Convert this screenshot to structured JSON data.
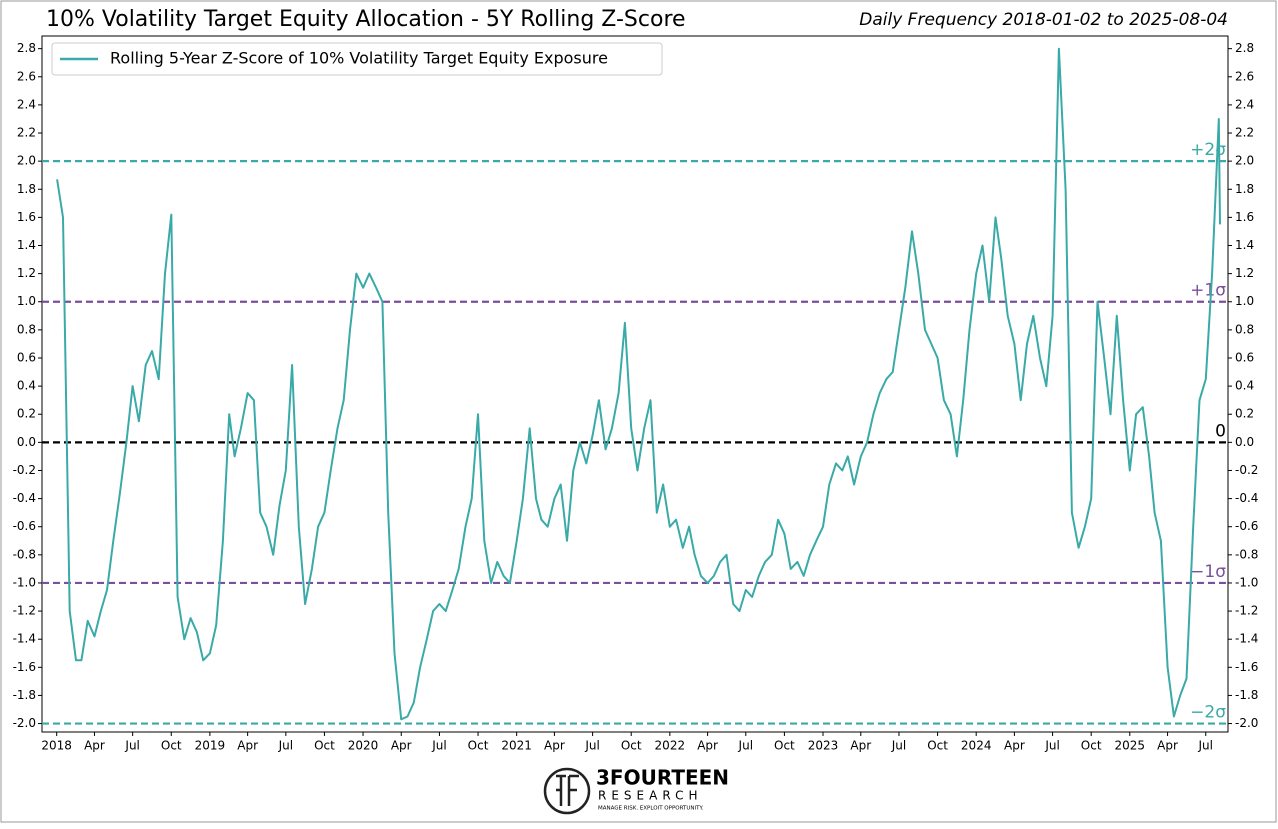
{
  "chart_data": {
    "type": "line",
    "title": "10% Volatility Target Equity Allocation - 5Y Rolling Z-Score",
    "subtitle": "Daily Frequency 2018-01-02 to 2025-08-04",
    "x": [
      "2018-01-02",
      "2018-01-16",
      "2018-02-01",
      "2018-02-16",
      "2018-03-01",
      "2018-03-16",
      "2018-04-01",
      "2018-04-16",
      "2018-05-01",
      "2018-05-16",
      "2018-06-01",
      "2018-06-16",
      "2018-07-01",
      "2018-07-16",
      "2018-08-01",
      "2018-08-16",
      "2018-09-01",
      "2018-09-16",
      "2018-10-01",
      "2018-10-16",
      "2018-11-01",
      "2018-11-16",
      "2018-12-01",
      "2018-12-16",
      "2019-01-01",
      "2019-01-16",
      "2019-02-01",
      "2019-02-16",
      "2019-03-01",
      "2019-03-16",
      "2019-04-01",
      "2019-04-16",
      "2019-05-01",
      "2019-05-16",
      "2019-06-01",
      "2019-06-16",
      "2019-07-01",
      "2019-07-16",
      "2019-08-01",
      "2019-08-16",
      "2019-09-01",
      "2019-09-16",
      "2019-10-01",
      "2019-10-16",
      "2019-11-01",
      "2019-11-16",
      "2019-12-01",
      "2019-12-16",
      "2020-01-01",
      "2020-01-16",
      "2020-02-01",
      "2020-02-16",
      "2020-03-01",
      "2020-03-16",
      "2020-04-01",
      "2020-04-16",
      "2020-05-01",
      "2020-05-16",
      "2020-06-01",
      "2020-06-16",
      "2020-07-01",
      "2020-07-16",
      "2020-08-01",
      "2020-08-16",
      "2020-09-01",
      "2020-09-16",
      "2020-10-01",
      "2020-10-16",
      "2020-11-01",
      "2020-11-16",
      "2020-12-01",
      "2020-12-16",
      "2021-01-01",
      "2021-01-16",
      "2021-02-01",
      "2021-02-16",
      "2021-03-01",
      "2021-03-16",
      "2021-04-01",
      "2021-04-16",
      "2021-05-01",
      "2021-05-16",
      "2021-06-01",
      "2021-06-16",
      "2021-07-01",
      "2021-07-16",
      "2021-08-01",
      "2021-08-16",
      "2021-09-01",
      "2021-09-16",
      "2021-10-01",
      "2021-10-16",
      "2021-11-01",
      "2021-11-16",
      "2021-12-01",
      "2021-12-16",
      "2022-01-01",
      "2022-01-16",
      "2022-02-01",
      "2022-02-16",
      "2022-03-01",
      "2022-03-16",
      "2022-04-01",
      "2022-04-16",
      "2022-05-01",
      "2022-05-16",
      "2022-06-01",
      "2022-06-16",
      "2022-07-01",
      "2022-07-16",
      "2022-08-01",
      "2022-08-16",
      "2022-09-01",
      "2022-09-16",
      "2022-10-01",
      "2022-10-16",
      "2022-11-01",
      "2022-11-16",
      "2022-12-01",
      "2022-12-16",
      "2023-01-01",
      "2023-01-16",
      "2023-02-01",
      "2023-02-16",
      "2023-03-01",
      "2023-03-16",
      "2023-04-01",
      "2023-04-16",
      "2023-05-01",
      "2023-05-16",
      "2023-06-01",
      "2023-06-16",
      "2023-07-01",
      "2023-07-16",
      "2023-08-01",
      "2023-08-16",
      "2023-09-01",
      "2023-09-16",
      "2023-10-01",
      "2023-10-16",
      "2023-11-01",
      "2023-11-16",
      "2023-12-01",
      "2023-12-16",
      "2024-01-01",
      "2024-01-16",
      "2024-02-01",
      "2024-02-16",
      "2024-03-01",
      "2024-03-16",
      "2024-04-01",
      "2024-04-16",
      "2024-05-01",
      "2024-05-16",
      "2024-06-01",
      "2024-06-16",
      "2024-07-01",
      "2024-07-16",
      "2024-08-01",
      "2024-08-16",
      "2024-09-01",
      "2024-09-16",
      "2024-10-01",
      "2024-10-16",
      "2024-11-01",
      "2024-11-16",
      "2024-12-01",
      "2024-12-16",
      "2025-01-01",
      "2025-01-16",
      "2025-02-01",
      "2025-02-16",
      "2025-03-01",
      "2025-03-16",
      "2025-04-01",
      "2025-04-16",
      "2025-05-01",
      "2025-05-16",
      "2025-06-01",
      "2025-06-16",
      "2025-07-01",
      "2025-07-16",
      "2025-08-01",
      "2025-08-04"
    ],
    "series": [
      {
        "name": "Rolling 5-Year Z-Score of 10% Volatility Target Equity Exposure",
        "color": "#3aaaa8",
        "values": [
          1.87,
          1.6,
          -1.2,
          -1.55,
          -1.55,
          -1.27,
          -1.38,
          -1.2,
          -1.05,
          -0.7,
          -0.35,
          0.0,
          0.4,
          0.15,
          0.55,
          0.65,
          0.45,
          1.2,
          1.62,
          -1.1,
          -1.4,
          -1.25,
          -1.35,
          -1.55,
          -1.5,
          -1.3,
          -0.7,
          0.2,
          -0.1,
          0.1,
          0.35,
          0.3,
          -0.5,
          -0.6,
          -0.8,
          -0.45,
          -0.2,
          0.55,
          -0.6,
          -1.15,
          -0.9,
          -0.6,
          -0.5,
          -0.2,
          0.1,
          0.3,
          0.8,
          1.2,
          1.1,
          1.2,
          1.1,
          1.0,
          -0.5,
          -1.5,
          -1.97,
          -1.95,
          -1.85,
          -1.6,
          -1.4,
          -1.2,
          -1.15,
          -1.2,
          -1.05,
          -0.9,
          -0.6,
          -0.4,
          0.2,
          -0.7,
          -1.0,
          -0.85,
          -0.95,
          -1.0,
          -0.7,
          -0.4,
          0.1,
          -0.4,
          -0.55,
          -0.6,
          -0.4,
          -0.3,
          -0.7,
          -0.2,
          0.0,
          -0.15,
          0.05,
          0.3,
          -0.05,
          0.1,
          0.35,
          0.85,
          0.1,
          -0.2,
          0.1,
          0.3,
          -0.5,
          -0.3,
          -0.6,
          -0.55,
          -0.75,
          -0.6,
          -0.8,
          -0.95,
          -1.0,
          -0.95,
          -0.85,
          -0.8,
          -1.15,
          -1.2,
          -1.05,
          -1.1,
          -0.95,
          -0.85,
          -0.8,
          -0.55,
          -0.65,
          -0.9,
          -0.85,
          -0.95,
          -0.8,
          -0.7,
          -0.6,
          -0.3,
          -0.15,
          -0.2,
          -0.1,
          -0.3,
          -0.1,
          0.0,
          0.2,
          0.35,
          0.45,
          0.5,
          0.8,
          1.1,
          1.5,
          1.2,
          0.8,
          0.7,
          0.6,
          0.3,
          0.2,
          -0.1,
          0.3,
          0.8,
          1.2,
          1.4,
          1.0,
          1.6,
          1.3,
          0.9,
          0.7,
          0.3,
          0.7,
          0.9,
          0.6,
          0.4,
          0.9,
          2.8,
          1.8,
          -0.5,
          -0.75,
          -0.6,
          -0.4,
          1.0,
          0.6,
          0.2,
          0.9,
          0.3,
          -0.2,
          0.2,
          0.25,
          -0.1,
          -0.5,
          -0.7,
          -1.6,
          -1.95,
          -1.8,
          -1.68,
          -0.6,
          0.3,
          0.45,
          1.2,
          2.3,
          1.55
        ]
      }
    ],
    "xlim": [
      "2017-11-27",
      "2025-08-23"
    ],
    "xticks": [
      {
        "value": "2018-01-01",
        "label": "2018"
      },
      {
        "value": "2018-04-01",
        "label": "Apr"
      },
      {
        "value": "2018-07-01",
        "label": "Jul"
      },
      {
        "value": "2018-10-01",
        "label": "Oct"
      },
      {
        "value": "2019-01-01",
        "label": "2019"
      },
      {
        "value": "2019-04-01",
        "label": "Apr"
      },
      {
        "value": "2019-07-01",
        "label": "Jul"
      },
      {
        "value": "2019-10-01",
        "label": "Oct"
      },
      {
        "value": "2020-01-01",
        "label": "2020"
      },
      {
        "value": "2020-04-01",
        "label": "Apr"
      },
      {
        "value": "2020-07-01",
        "label": "Jul"
      },
      {
        "value": "2020-10-01",
        "label": "Oct"
      },
      {
        "value": "2021-01-01",
        "label": "2021"
      },
      {
        "value": "2021-04-01",
        "label": "Apr"
      },
      {
        "value": "2021-07-01",
        "label": "Jul"
      },
      {
        "value": "2021-10-01",
        "label": "Oct"
      },
      {
        "value": "2022-01-01",
        "label": "2022"
      },
      {
        "value": "2022-04-01",
        "label": "Apr"
      },
      {
        "value": "2022-07-01",
        "label": "Jul"
      },
      {
        "value": "2022-10-01",
        "label": "Oct"
      },
      {
        "value": "2023-01-01",
        "label": "2023"
      },
      {
        "value": "2023-04-01",
        "label": "Apr"
      },
      {
        "value": "2023-07-01",
        "label": "Jul"
      },
      {
        "value": "2023-10-01",
        "label": "Oct"
      },
      {
        "value": "2024-01-01",
        "label": "2024"
      },
      {
        "value": "2024-04-01",
        "label": "Apr"
      },
      {
        "value": "2024-07-01",
        "label": "Jul"
      },
      {
        "value": "2024-10-01",
        "label": "Oct"
      },
      {
        "value": "2025-01-01",
        "label": "2025"
      },
      {
        "value": "2025-04-01",
        "label": "Apr"
      },
      {
        "value": "2025-07-01",
        "label": "Jul"
      }
    ],
    "ylim": [
      -2.06,
      2.89
    ],
    "yticks": [
      {
        "value": -2.0,
        "label": "-2.0"
      },
      {
        "value": -1.8,
        "label": "-1.8"
      },
      {
        "value": -1.6,
        "label": "-1.6"
      },
      {
        "value": -1.4,
        "label": "-1.4"
      },
      {
        "value": -1.2,
        "label": "-1.2"
      },
      {
        "value": -1.0,
        "label": "-1.0"
      },
      {
        "value": -0.8,
        "label": "-0.8"
      },
      {
        "value": -0.6,
        "label": "-0.6"
      },
      {
        "value": -0.4,
        "label": "-0.4"
      },
      {
        "value": -0.2,
        "label": "-0.2"
      },
      {
        "value": 0,
        "label": "0.0"
      },
      {
        "value": 0.2,
        "label": "0.2"
      },
      {
        "value": 0.4,
        "label": "0.4"
      },
      {
        "value": 0.6,
        "label": "0.6"
      },
      {
        "value": 0.8,
        "label": "0.8"
      },
      {
        "value": 1.0,
        "label": "1.0"
      },
      {
        "value": 1.2,
        "label": "1.2"
      },
      {
        "value": 1.4,
        "label": "1.4"
      },
      {
        "value": 1.6,
        "label": "1.6"
      },
      {
        "value": 1.8,
        "label": "1.8"
      },
      {
        "value": 2.0,
        "label": "2.0"
      },
      {
        "value": 2.2,
        "label": "2.2"
      },
      {
        "value": 2.4,
        "label": "2.4"
      },
      {
        "value": 2.6,
        "label": "2.6"
      },
      {
        "value": 2.8,
        "label": "2.8"
      }
    ],
    "reference_lines": [
      {
        "value": 2,
        "label": "+2σ",
        "color": "#3aaaa8"
      },
      {
        "value": 1,
        "label": "+1σ",
        "color": "#7b4f9d"
      },
      {
        "value": 0,
        "label": "0",
        "color": "#000000"
      },
      {
        "value": -1,
        "label": "−1σ",
        "color": "#7b4f9d"
      },
      {
        "value": -2,
        "label": "−2σ",
        "color": "#3aaaa8"
      }
    ],
    "legend": "upper left",
    "logo": {
      "name": "3FOURTEEN",
      "sub": "RESEARCH",
      "tagline": "MANAGE RISK. EXPLOIT OPPORTUNITY."
    }
  }
}
